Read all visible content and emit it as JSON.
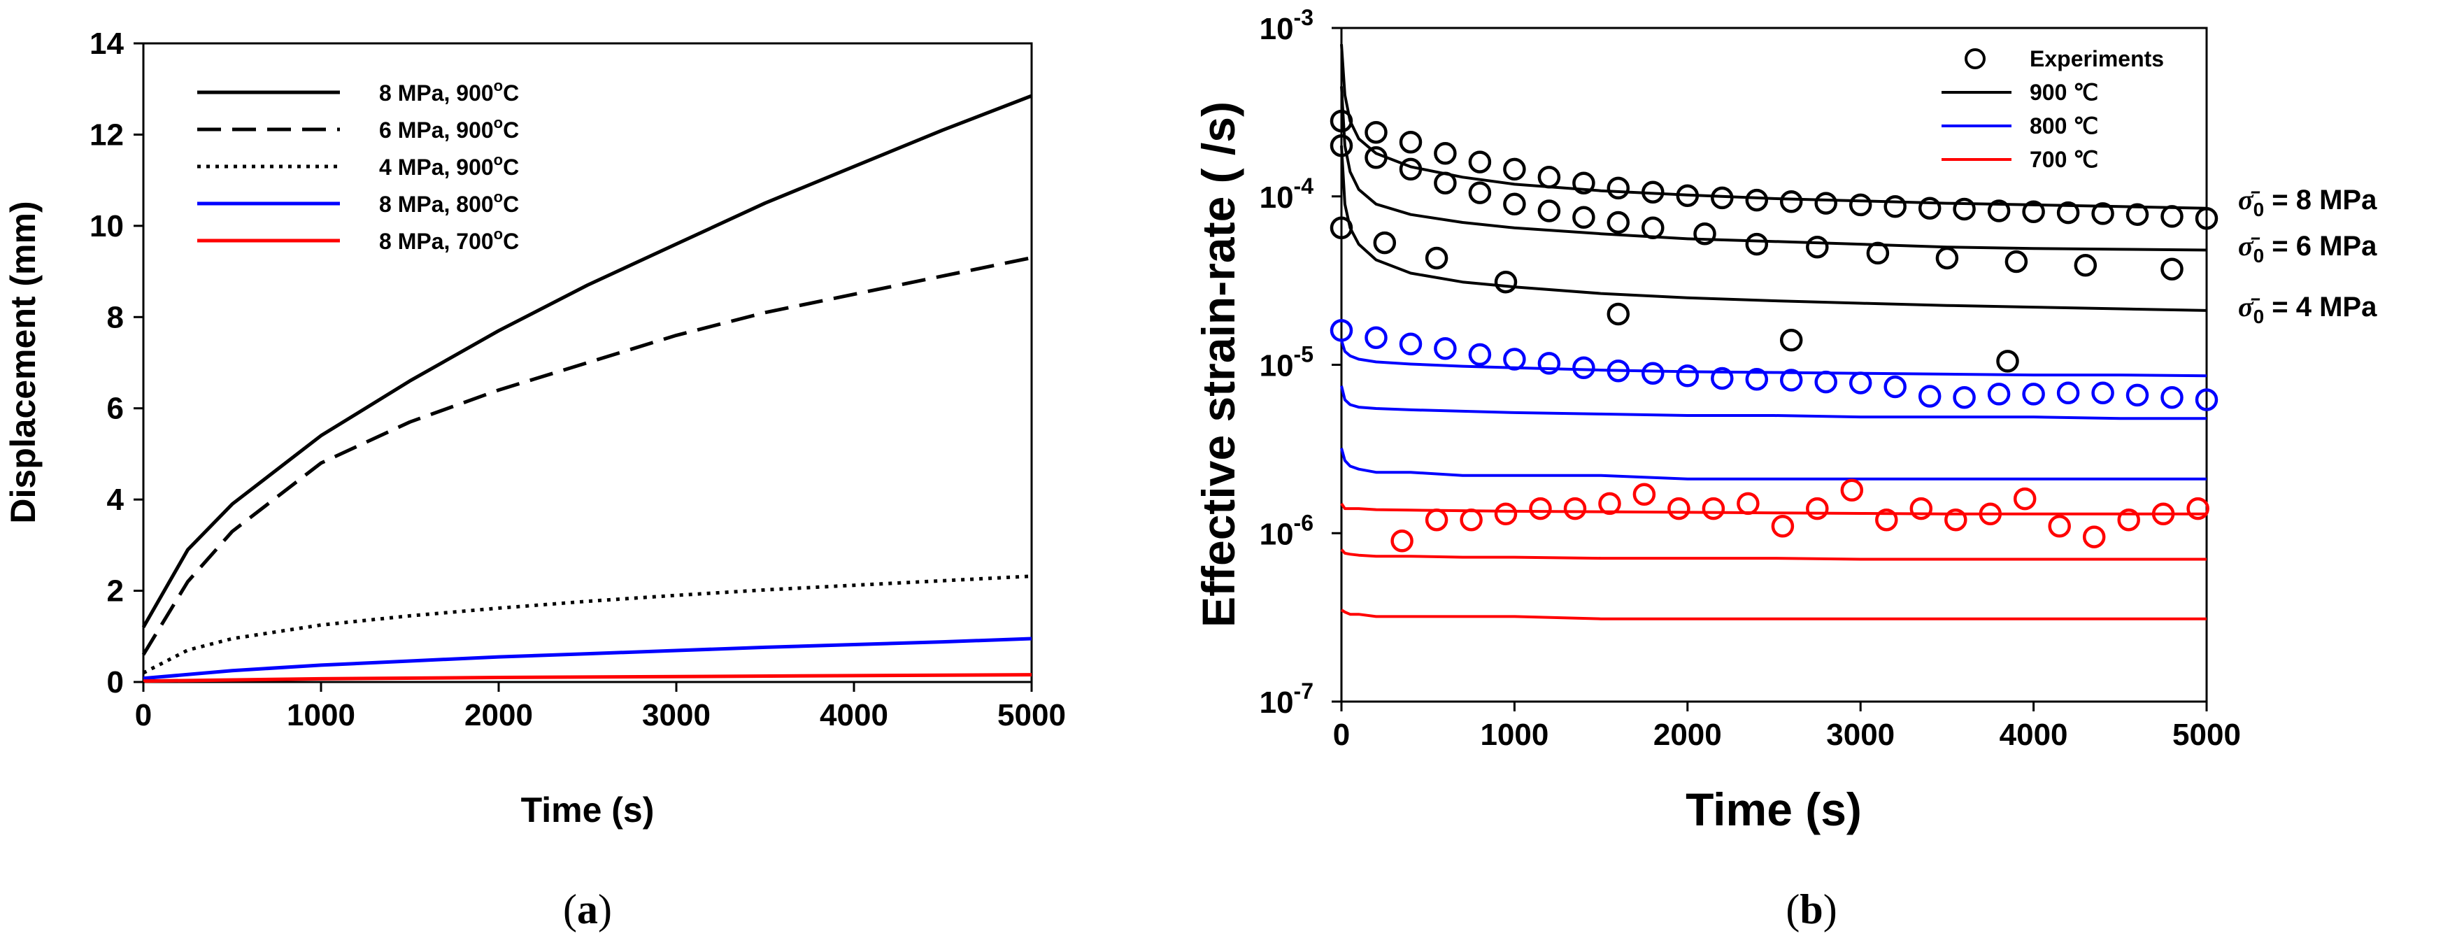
{
  "colors": {
    "black": "#000000",
    "blue": "#0000ff",
    "red": "#ff0000"
  },
  "panels": [
    {
      "caption_open": "(",
      "caption_letter": "a",
      "caption_close": ")"
    },
    {
      "caption_open": "(",
      "caption_letter": "b",
      "caption_close": ")"
    }
  ],
  "chart_data": [
    {
      "type": "line",
      "panel": "a",
      "xlabel": "Time (s)",
      "ylabel": "Displacement (mm)",
      "xlim": [
        0,
        5000
      ],
      "ylim": [
        0,
        14
      ],
      "xticks": [
        0,
        1000,
        2000,
        3000,
        4000,
        5000
      ],
      "yticks": [
        0,
        2,
        4,
        6,
        8,
        10,
        12,
        14
      ],
      "legend_position": "top-left",
      "series": [
        {
          "name": "8 MPa, 900°C",
          "label_main": "8 MPa, 900",
          "label_sup": "o",
          "label_end": "C",
          "color": "black",
          "dash": "solid",
          "x": [
            0,
            250,
            500,
            1000,
            1500,
            2000,
            2500,
            3000,
            3500,
            4000,
            4500,
            5000
          ],
          "y": [
            1.2,
            2.9,
            3.9,
            5.4,
            6.6,
            7.7,
            8.7,
            9.6,
            10.5,
            11.3,
            12.1,
            12.85
          ]
        },
        {
          "name": "6 MPa, 900°C",
          "label_main": "6 MPa, 900",
          "label_sup": "o",
          "label_end": "C",
          "color": "black",
          "dash": "dashed",
          "x": [
            0,
            250,
            500,
            1000,
            1500,
            2000,
            2500,
            3000,
            3500,
            4000,
            4500,
            5000
          ],
          "y": [
            0.6,
            2.2,
            3.3,
            4.8,
            5.7,
            6.4,
            7.0,
            7.6,
            8.1,
            8.5,
            8.9,
            9.3
          ]
        },
        {
          "name": "4 MPa, 900°C",
          "label_main": "4 MPa, 900",
          "label_sup": "o",
          "label_end": "C",
          "color": "black",
          "dash": "dotted",
          "x": [
            0,
            250,
            500,
            1000,
            1500,
            2000,
            2500,
            3000,
            3500,
            4000,
            4500,
            5000
          ],
          "y": [
            0.2,
            0.7,
            0.95,
            1.25,
            1.45,
            1.62,
            1.77,
            1.9,
            2.02,
            2.12,
            2.22,
            2.32
          ]
        },
        {
          "name": "8 MPa, 800°C",
          "label_main": "8 MPa, 800",
          "label_sup": "o",
          "label_end": "C",
          "color": "blue",
          "dash": "solid",
          "x": [
            0,
            500,
            1000,
            1500,
            2000,
            2500,
            3000,
            3500,
            4000,
            4500,
            5000
          ],
          "y": [
            0.08,
            0.25,
            0.37,
            0.46,
            0.55,
            0.62,
            0.69,
            0.76,
            0.82,
            0.88,
            0.95
          ]
        },
        {
          "name": "8 MPa, 700°C",
          "label_main": "8 MPa, 700",
          "label_sup": "o",
          "label_end": "C",
          "color": "red",
          "dash": "solid",
          "x": [
            0,
            1000,
            2000,
            3000,
            4000,
            5000
          ],
          "y": [
            0.02,
            0.07,
            0.1,
            0.12,
            0.14,
            0.16
          ]
        }
      ]
    },
    {
      "type": "line",
      "panel": "b",
      "xlabel": "Time (s)",
      "ylabel": "Effective strain-rate ( /s)",
      "yscale": "log",
      "xlim": [
        0,
        5000
      ],
      "ylim": [
        1e-07,
        0.001
      ],
      "xticks": [
        0,
        1000,
        2000,
        3000,
        4000,
        5000
      ],
      "yticks": [
        {
          "value": 0.001,
          "base": "10",
          "exp": "-3"
        },
        {
          "value": 0.0001,
          "base": "10",
          "exp": "-4"
        },
        {
          "value": 1e-05,
          "base": "10",
          "exp": "-5"
        },
        {
          "value": 1e-06,
          "base": "10",
          "exp": "-6"
        },
        {
          "value": 1e-07,
          "base": "10",
          "exp": "-7"
        }
      ],
      "legend_position": "top-right",
      "legend": [
        {
          "label": "Experiments",
          "marker": "circle"
        },
        {
          "label": "900 ℃",
          "color": "black"
        },
        {
          "label": "800 ℃",
          "color": "blue"
        },
        {
          "label": "700 ℃",
          "color": "red"
        }
      ],
      "annotations": [
        {
          "sym": "σ̄",
          "sub": "0",
          "text": "= 8 MPa",
          "y": 8.5e-05
        },
        {
          "sym": "σ̄",
          "sub": "0",
          "text": "= 6 MPa",
          "y": 4.8e-05
        },
        {
          "sym": "σ̄",
          "sub": "0",
          "text": "= 4 MPa",
          "y": 2.1e-05
        }
      ],
      "model_x": [
        0,
        20,
        50,
        100,
        200,
        400,
        700,
        1000,
        1500,
        2000,
        2500,
        3000,
        3500,
        4000,
        4500,
        5000
      ],
      "model_series": [
        {
          "name": "900 ℃, 8 MPa",
          "color": "black",
          "y": [
            0.0008,
            0.0004,
            0.00028,
            0.00022,
            0.00018,
            0.00015,
            0.00013,
            0.000118,
            0.000108,
            0.000102,
            9.7e-05,
            9.4e-05,
            9.1e-05,
            8.9e-05,
            8.7e-05,
            8.5e-05
          ]
        },
        {
          "name": "900 ℃, 6 MPa",
          "color": "black",
          "y": [
            0.00045,
            0.0002,
            0.00014,
            0.00011,
            9e-05,
            7.8e-05,
            7e-05,
            6.5e-05,
            6e-05,
            5.6e-05,
            5.4e-05,
            5.2e-05,
            5e-05,
            4.9e-05,
            4.85e-05,
            4.8e-05
          ]
        },
        {
          "name": "900 ℃, 4 MPa",
          "color": "black",
          "y": [
            0.0002,
            9e-05,
            6.5e-05,
            5.2e-05,
            4.2e-05,
            3.5e-05,
            3.1e-05,
            2.9e-05,
            2.65e-05,
            2.5e-05,
            2.4e-05,
            2.32e-05,
            2.25e-05,
            2.2e-05,
            2.15e-05,
            2.1e-05
          ]
        },
        {
          "name": "800 ℃, 8 MPa",
          "color": "blue",
          "y": [
            1.4e-05,
            1.2e-05,
            1.13e-05,
            1.08e-05,
            1.04e-05,
            1.01e-05,
            9.8e-06,
            9.6e-06,
            9.3e-06,
            9.1e-06,
            9e-06,
            8.9e-06,
            8.8e-06,
            8.7e-06,
            8.7e-06,
            8.6e-06
          ]
        },
        {
          "name": "800 ℃, 6 MPa",
          "color": "blue",
          "y": [
            7.5e-06,
            6.2e-06,
            5.8e-06,
            5.6e-06,
            5.5e-06,
            5.4e-06,
            5.3e-06,
            5.2e-06,
            5.1e-06,
            5e-06,
            5e-06,
            4.9e-06,
            4.9e-06,
            4.9e-06,
            4.8e-06,
            4.8e-06
          ]
        },
        {
          "name": "800 ℃, 4 MPa",
          "color": "blue",
          "y": [
            3.2e-06,
            2.7e-06,
            2.5e-06,
            2.4e-06,
            2.3e-06,
            2.3e-06,
            2.2e-06,
            2.2e-06,
            2.2e-06,
            2.1e-06,
            2.1e-06,
            2.1e-06,
            2.1e-06,
            2.1e-06,
            2.1e-06,
            2.1e-06
          ]
        },
        {
          "name": "700 ℃, 8 MPa",
          "color": "red",
          "y": [
            1.5e-06,
            1.4e-06,
            1.4e-06,
            1.4e-06,
            1.38e-06,
            1.37e-06,
            1.36e-06,
            1.35e-06,
            1.34e-06,
            1.33e-06,
            1.32e-06,
            1.31e-06,
            1.3e-06,
            1.3e-06,
            1.3e-06,
            1.3e-06
          ]
        },
        {
          "name": "700 ℃, 6 MPa",
          "color": "red",
          "y": [
            8e-07,
            7.6e-07,
            7.5e-07,
            7.4e-07,
            7.3e-07,
            7.3e-07,
            7.2e-07,
            7.2e-07,
            7.1e-07,
            7.1e-07,
            7.1e-07,
            7e-07,
            7e-07,
            7e-07,
            7e-07,
            7e-07
          ]
        },
        {
          "name": "700 ℃, 4 MPa",
          "color": "red",
          "y": [
            3.5e-07,
            3.4e-07,
            3.3e-07,
            3.3e-07,
            3.2e-07,
            3.2e-07,
            3.2e-07,
            3.2e-07,
            3.1e-07,
            3.1e-07,
            3.1e-07,
            3.1e-07,
            3.1e-07,
            3.1e-07,
            3.1e-07,
            3.1e-07
          ]
        }
      ],
      "experiment_series": [
        {
          "name": "900 ℃, 8 MPa (exp)",
          "color": "black",
          "x": [
            0,
            200,
            400,
            600,
            800,
            1000,
            1200,
            1400,
            1600,
            1800,
            2000,
            2200,
            2400,
            2600,
            2800,
            3000,
            3200,
            3400,
            3600,
            3800,
            4000,
            4200,
            4400,
            4600,
            4800,
            5000
          ],
          "y": [
            0.00028,
            0.00024,
            0.00021,
            0.00018,
            0.00016,
            0.000145,
            0.00013,
            0.00012,
            0.000112,
            0.000106,
            0.000101,
            9.8e-05,
            9.5e-05,
            9.3e-05,
            9.1e-05,
            8.9e-05,
            8.7e-05,
            8.5e-05,
            8.4e-05,
            8.2e-05,
            8.1e-05,
            8e-05,
            7.9e-05,
            7.8e-05,
            7.6e-05,
            7.4e-05
          ]
        },
        {
          "name": "900 ℃, 6 MPa (exp)",
          "color": "black",
          "x": [
            0,
            200,
            400,
            600,
            800,
            1000,
            1200,
            1400,
            1600,
            1800,
            2100,
            2400,
            2750,
            3100,
            3500,
            3900,
            4300,
            4800
          ],
          "y": [
            0.0002,
            0.00017,
            0.000145,
            0.00012,
            0.000105,
            9e-05,
            8.2e-05,
            7.5e-05,
            7e-05,
            6.5e-05,
            6e-05,
            5.2e-05,
            5e-05,
            4.6e-05,
            4.3e-05,
            4.1e-05,
            3.9e-05,
            3.7e-05
          ]
        },
        {
          "name": "900 ℃, 4 MPa (exp)",
          "color": "black",
          "x": [
            0,
            250,
            550,
            950,
            1600,
            2600,
            3850
          ],
          "y": [
            6.5e-05,
            5.3e-05,
            4.3e-05,
            3.1e-05,
            2e-05,
            1.4e-05,
            1.05e-05
          ]
        },
        {
          "name": "800 ℃, 8 MPa (exp)",
          "color": "blue",
          "x": [
            0,
            200,
            400,
            600,
            800,
            1000,
            1200,
            1400,
            1600,
            1800,
            2000,
            2200,
            2400,
            2600,
            2800,
            3000,
            3200,
            3400,
            3600,
            3800,
            4000,
            4200,
            4400,
            4600,
            4800,
            5000
          ],
          "y": [
            1.6e-05,
            1.45e-05,
            1.33e-05,
            1.25e-05,
            1.15e-05,
            1.08e-05,
            1.02e-05,
            9.6e-06,
            9.2e-06,
            8.9e-06,
            8.6e-06,
            8.3e-06,
            8.2e-06,
            8.1e-06,
            7.9e-06,
            7.8e-06,
            7.4e-06,
            6.5e-06,
            6.4e-06,
            6.7e-06,
            6.7e-06,
            6.8e-06,
            6.8e-06,
            6.6e-06,
            6.4e-06,
            6.2e-06
          ]
        },
        {
          "name": "700 ℃, 8 MPa (exp)",
          "color": "red",
          "x": [
            350,
            550,
            750,
            950,
            1150,
            1350,
            1550,
            1750,
            1950,
            2150,
            2350,
            2550,
            2750,
            2950,
            3150,
            3350,
            3550,
            3750,
            3950,
            4150,
            4350,
            4550,
            4750,
            4950
          ],
          "y": [
            9e-07,
            1.2e-06,
            1.2e-06,
            1.3e-06,
            1.4e-06,
            1.4e-06,
            1.5e-06,
            1.7e-06,
            1.4e-06,
            1.4e-06,
            1.5e-06,
            1.1e-06,
            1.4e-06,
            1.8e-06,
            1.2e-06,
            1.4e-06,
            1.2e-06,
            1.3e-06,
            1.6e-06,
            1.1e-06,
            9.5e-07,
            1.2e-06,
            1.3e-06,
            1.4e-06
          ]
        }
      ]
    }
  ]
}
